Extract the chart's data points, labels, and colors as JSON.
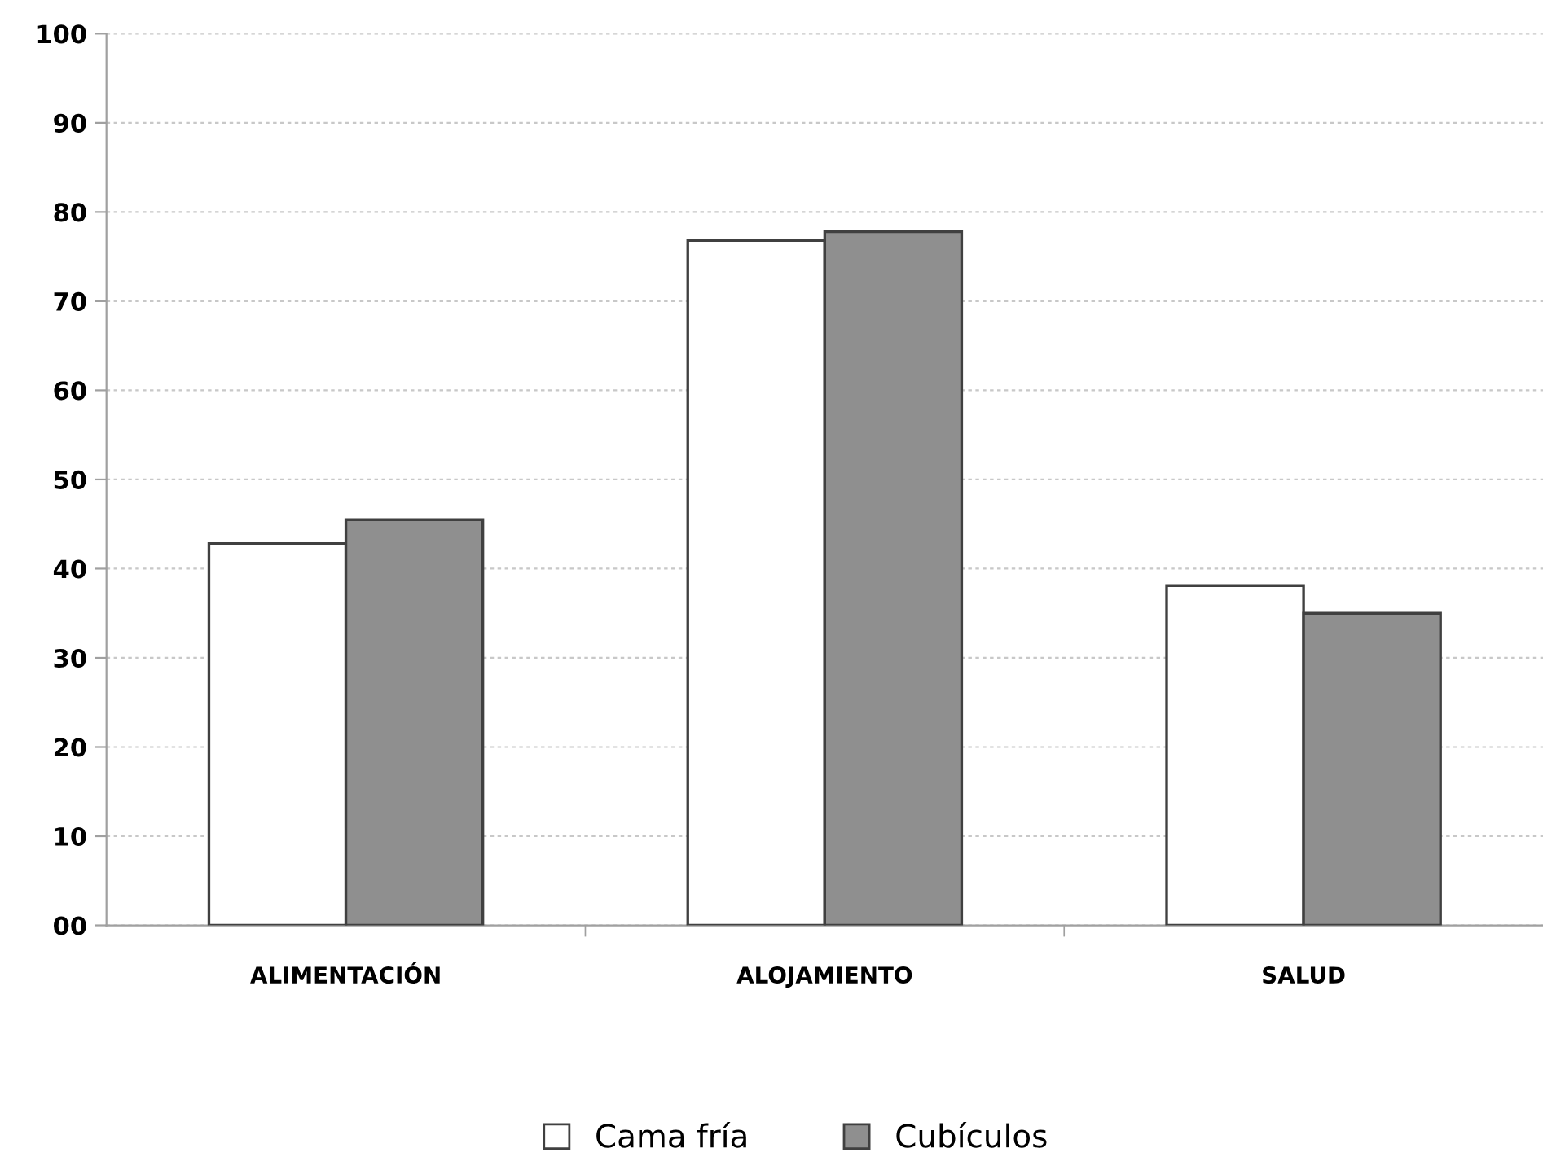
{
  "chart_data": {
    "type": "bar",
    "categories": [
      "ALIMENTACIÓN",
      "ALOJAMIENTO",
      "SALUD"
    ],
    "series": [
      {
        "name": "Cama fría",
        "color": "#ffffff",
        "values": [
          42.8,
          76.8,
          38.1
        ]
      },
      {
        "name": "Cubículos",
        "color": "#8f8f8f",
        "values": [
          45.5,
          77.8,
          35.0
        ]
      }
    ],
    "ylim": [
      0,
      100
    ],
    "yticks": [
      {
        "value": 0,
        "label": "00"
      },
      10,
      20,
      30,
      40,
      50,
      60,
      70,
      80,
      90,
      100
    ],
    "grid": "y",
    "legend": "bottom"
  }
}
